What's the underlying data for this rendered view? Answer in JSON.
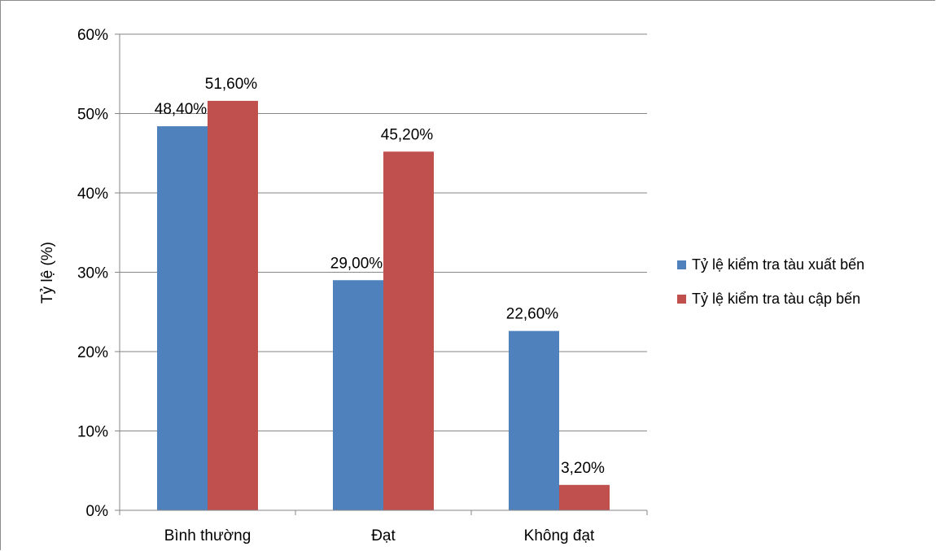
{
  "chart_data": {
    "type": "bar",
    "categories": [
      "Bình thường",
      "Đạt",
      "Không đạt"
    ],
    "series": [
      {
        "name": "Tỷ lệ kiểm tra tàu xuất bến",
        "values": [
          48.4,
          29.0,
          22.6
        ],
        "labels": [
          "48,40%",
          "29,00%",
          "22,60%"
        ],
        "color": "#4f81bd"
      },
      {
        "name": "Tỷ lệ kiểm tra tàu cập bến",
        "values": [
          51.6,
          45.2,
          3.2
        ],
        "labels": [
          "51,60%",
          "45,20%",
          "3,20%"
        ],
        "color": "#c0504d"
      }
    ],
    "title": "",
    "xlabel": "",
    "ylabel": "Tỷ lệ (%)",
    "ylim": [
      0,
      60
    ],
    "yticks": [
      "0%",
      "10%",
      "20%",
      "30%",
      "40%",
      "50%",
      "60%"
    ],
    "grid": true,
    "legend_position": "right"
  }
}
